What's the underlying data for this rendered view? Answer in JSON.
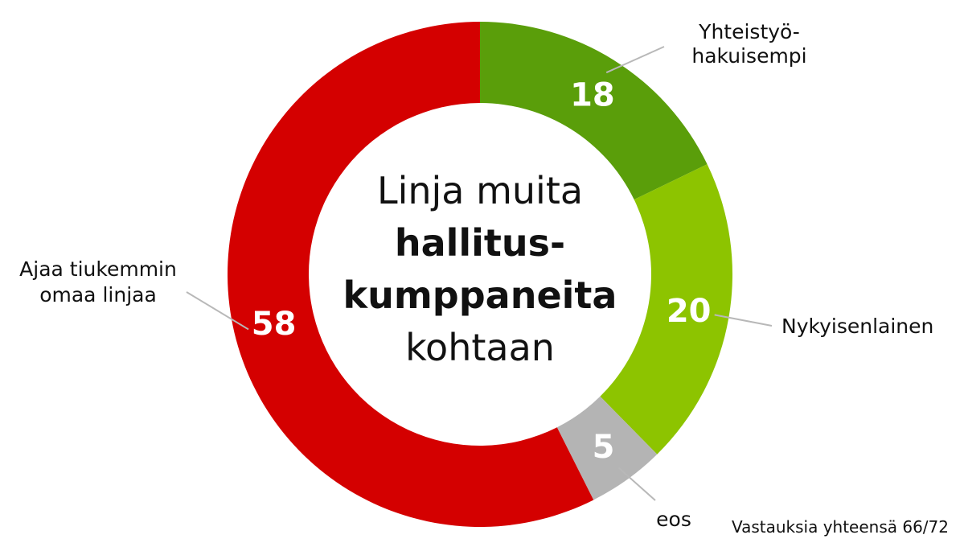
{
  "chart_data": {
    "type": "pie",
    "subtype": "donut",
    "categories": [
      "Yhteistyö-hakuisempi",
      "Nykyisenlainen",
      "eos",
      "Ajaa tiukemmin omaa linjaa"
    ],
    "values": [
      18,
      20,
      5,
      58
    ],
    "colors": [
      "#5a9e0a",
      "#8dc400",
      "#b4b4b4",
      "#d40000"
    ],
    "label_lines": [
      [
        "Yhteistyö-",
        "hakuisempi"
      ],
      [
        "Nykyisenlainen"
      ],
      [
        "eos"
      ],
      [
        "Ajaa tiukemmin",
        "omaa linjaa"
      ]
    ],
    "center_title": {
      "line1": "Linja muita",
      "line2": "hallitus-",
      "line3": "kumppaneita",
      "line4": "kohtaan"
    },
    "footnote": "Vastauksia yhteensä 66/72",
    "legend": "none"
  }
}
